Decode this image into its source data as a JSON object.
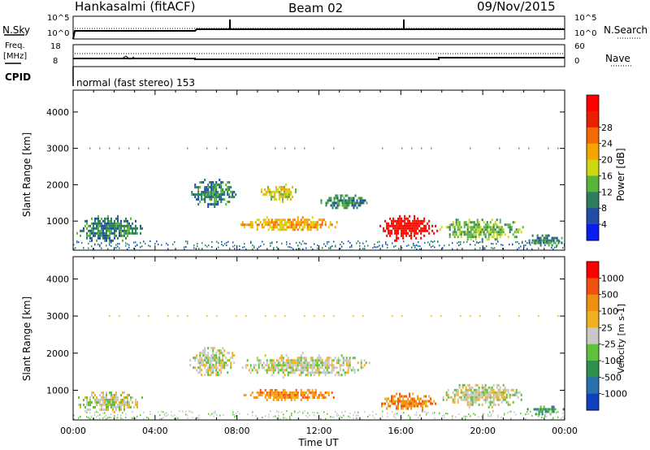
{
  "header": {
    "station": "Hankasalmi (fitACF)",
    "beam": "Beam 02",
    "date": "09/Nov/2015"
  },
  "noise_panel": {
    "left_label": "N.Sky",
    "right_label": "N.Search",
    "ticks_left": [
      "10^5",
      "10^0"
    ],
    "ticks_right": [
      "10^5",
      "10^0"
    ]
  },
  "freq_panel": {
    "left_label_top": "Freq.",
    "left_label_unit": "[MHz]",
    "right_label": "Nave",
    "ticks_left": [
      "18",
      "8"
    ],
    "ticks_right": [
      "60",
      "0"
    ]
  },
  "cpid": {
    "label": "CPID",
    "value": "normal (fast stereo) 153"
  },
  "chart_data": [
    {
      "type": "heatmap",
      "name": "power",
      "ylabel": "Slant Range [km]",
      "yticks": [
        "1000",
        "2000",
        "3000",
        "4000"
      ],
      "ylim": [
        200,
        4600
      ],
      "xlim": [
        0,
        24
      ],
      "colorbar_label": "Power [dB]",
      "colorbar_ticks": [
        "4",
        "8",
        "12",
        "16",
        "20",
        "24",
        "28"
      ],
      "colors": [
        "#0a1cf0",
        "#214da5",
        "#2e7d5e",
        "#57b53a",
        "#cfd80f",
        "#f5a500",
        "#f36a00",
        "#e81f00",
        "#ff0000"
      ],
      "echo_regions": [
        {
          "t_start": 0.0,
          "t_end": 3.5,
          "r_start": 350,
          "r_end": 1300,
          "level": 2
        },
        {
          "t_start": 5.6,
          "t_end": 8.0,
          "r_start": 1300,
          "r_end": 2300,
          "level": 2
        },
        {
          "t_start": 8.0,
          "t_end": 13.0,
          "r_start": 700,
          "r_end": 1200,
          "level": 5
        },
        {
          "t_start": 9.0,
          "t_end": 11.0,
          "r_start": 1500,
          "r_end": 2100,
          "level": 4
        },
        {
          "t_start": 12.0,
          "t_end": 14.5,
          "r_start": 1300,
          "r_end": 1800,
          "level": 2
        },
        {
          "t_start": 14.8,
          "t_end": 17.8,
          "r_start": 400,
          "r_end": 1300,
          "level": 8
        },
        {
          "t_start": 17.8,
          "t_end": 22.0,
          "r_start": 400,
          "r_end": 1200,
          "level": 3
        },
        {
          "t_start": 22.0,
          "t_end": 24.0,
          "r_start": 300,
          "r_end": 700,
          "level": 2
        }
      ]
    },
    {
      "type": "heatmap",
      "name": "velocity",
      "ylabel": "Slant Range [km]",
      "yticks": [
        "1000",
        "2000",
        "3000",
        "4000"
      ],
      "ylim": [
        200,
        4600
      ],
      "xlim": [
        0,
        24
      ],
      "xlabel": "Time UT",
      "xticks": [
        "00:00",
        "04:00",
        "08:00",
        "12:00",
        "16:00",
        "20:00",
        "00:00"
      ],
      "colorbar_label": "Velocity [m s-1]",
      "colorbar_ticks": [
        "1000",
        "500",
        "100",
        "25",
        "-25",
        "-100",
        "-500",
        "-1000"
      ],
      "colors": [
        "#1040c0",
        "#2a6fae",
        "#2f8f4e",
        "#5dc13a",
        "#c8c8c8",
        "#f0b020",
        "#f09010",
        "#f05010",
        "#ff0000"
      ],
      "echo_regions": [
        {
          "t_start": 0.0,
          "t_end": 3.5,
          "r_start": 350,
          "r_end": 1100,
          "level": 4
        },
        {
          "t_start": 5.6,
          "t_end": 8.0,
          "r_start": 1300,
          "r_end": 2300,
          "level": 4
        },
        {
          "t_start": 8.0,
          "t_end": 13.0,
          "r_start": 700,
          "r_end": 1100,
          "level": 6
        },
        {
          "t_start": 8.0,
          "t_end": 14.5,
          "r_start": 1300,
          "r_end": 2100,
          "level": 4
        },
        {
          "t_start": 14.8,
          "t_end": 17.8,
          "r_start": 400,
          "r_end": 1000,
          "level": 6
        },
        {
          "t_start": 17.8,
          "t_end": 22.0,
          "r_start": 500,
          "r_end": 1300,
          "level": 4
        },
        {
          "t_start": 22.0,
          "t_end": 24.0,
          "r_start": 350,
          "r_end": 650,
          "level": 2
        }
      ]
    }
  ]
}
